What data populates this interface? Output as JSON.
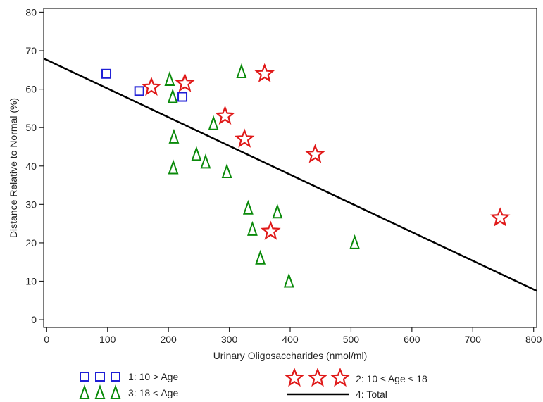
{
  "chart_data": {
    "type": "scatter",
    "xlabel": "Urinary Oligosaccharides (nmol/ml)",
    "ylabel": "Distance Relative to Normal (%)",
    "xlim": [
      -5,
      805
    ],
    "ylim": [
      -2,
      81
    ],
    "x_ticks": [
      0,
      100,
      200,
      300,
      400,
      500,
      600,
      700,
      800
    ],
    "y_ticks": [
      0,
      10,
      20,
      30,
      40,
      50,
      60,
      70,
      80
    ],
    "grid": false,
    "legend_position": "bottom",
    "series": [
      {
        "name": "1: 10 > Age",
        "marker": "square",
        "color": "#1f1fd6",
        "points": [
          [
            98,
            64
          ],
          [
            152,
            59.5
          ],
          [
            223,
            58
          ]
        ]
      },
      {
        "name": "3: 18 < Age",
        "marker": "triangle",
        "color": "#0a8a0a",
        "points": [
          [
            202,
            62.5
          ],
          [
            207,
            58
          ],
          [
            209,
            47.5
          ],
          [
            208,
            39.5
          ],
          [
            246,
            43
          ],
          [
            261,
            41
          ],
          [
            274,
            51
          ],
          [
            296,
            38.5
          ],
          [
            320,
            64.5
          ],
          [
            331,
            29
          ],
          [
            338,
            23.5
          ],
          [
            351,
            16
          ],
          [
            379,
            28
          ],
          [
            398,
            10
          ],
          [
            506,
            20
          ]
        ]
      },
      {
        "name": "2: 10 ≤ Age ≤ 18",
        "marker": "star",
        "color": "#e01919",
        "points": [
          [
            172,
            60.5
          ],
          [
            227,
            61.5
          ],
          [
            293,
            53
          ],
          [
            325,
            47
          ],
          [
            358,
            64
          ],
          [
            368,
            23
          ],
          [
            441,
            43
          ],
          [
            745,
            26.5
          ]
        ]
      },
      {
        "name": "4: Total",
        "marker": "line",
        "color": "#000000",
        "points": [
          [
            -5,
            68
          ],
          [
            805,
            7.5
          ]
        ]
      }
    ]
  },
  "legend": {
    "item1": "1: 10 > Age",
    "item2": "2: 10 ≤ Age ≤ 18",
    "item3": "3: 18 < Age",
    "item4": "4: Total"
  },
  "colors": {
    "age_under_10": "#1f1fd6",
    "age_10_to_18": "#e01919",
    "age_over_18": "#0a8a0a",
    "total_line": "#000000"
  }
}
